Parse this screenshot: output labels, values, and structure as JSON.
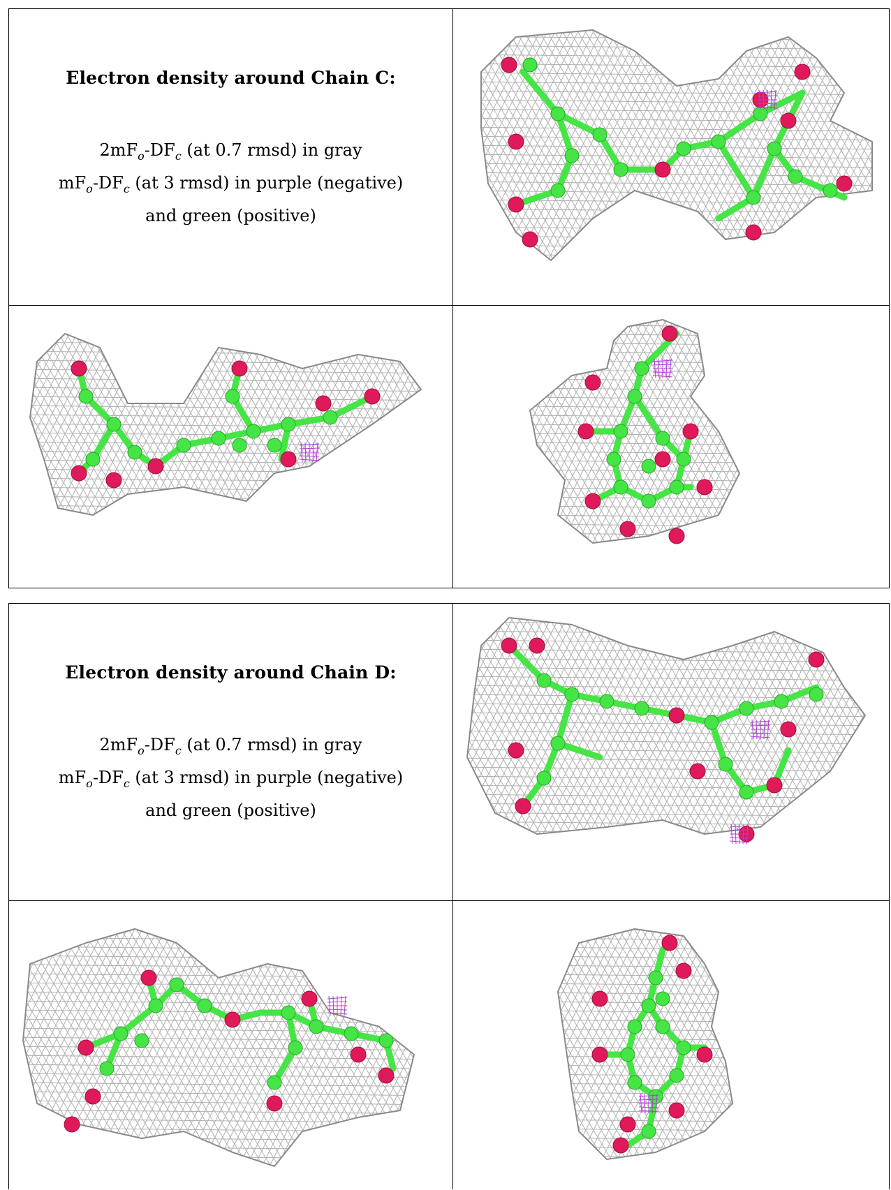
{
  "panels": [
    {
      "title": "Electron density around Chain C:",
      "line1_pre": "2mF",
      "line1_sub1": "o",
      "line1_mid": "-DF",
      "line1_sub2": "c",
      "line1_post": " (at 0.7 rmsd) in gray",
      "line2_pre": "mF",
      "line2_sub1": "o",
      "line2_mid": "-DF",
      "line2_sub2": "c",
      "line2_post": " (at 3 rmsd) in purple (negative)",
      "line3": "and green (positive)"
    },
    {
      "title": "Electron density around Chain D:",
      "line1_pre": "2mF",
      "line1_sub1": "o",
      "line1_mid": "-DF",
      "line1_sub2": "c",
      "line1_post": " (at 0.7 rmsd) in gray",
      "line2_pre": "mF",
      "line2_sub1": "o",
      "line2_mid": "-DF",
      "line2_sub2": "c",
      "line2_post": " (at 3 rmsd) in purple (negative)",
      "line3": "and green (positive)"
    }
  ],
  "colors": {
    "mesh": "#a8a8a8",
    "carbon": "#44e544",
    "oxygen": "#e0195a",
    "negative": "#b43cd8"
  }
}
